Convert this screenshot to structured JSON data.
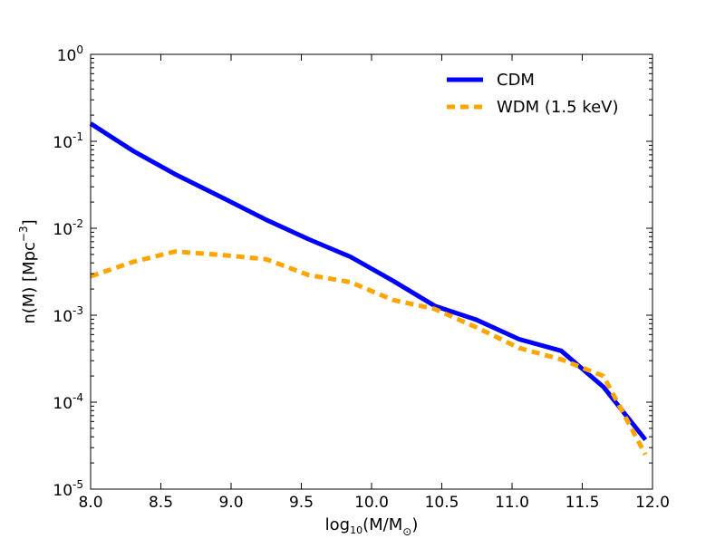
{
  "chart_data": {
    "type": "line",
    "title": "",
    "xlabel": {
      "base": "log",
      "sub": "10",
      "main": "(M/M",
      "sub2": "⊙",
      "close": ")"
    },
    "ylabel": {
      "main": "n(M) [Mpc",
      "sup": "−3",
      "close": "]"
    },
    "xlim": [
      8.0,
      12.0
    ],
    "ylim": [
      1e-05,
      1
    ],
    "yscale": "log",
    "x_ticks": [
      "8.0",
      "8.5",
      "9.0",
      "9.5",
      "10.0",
      "10.5",
      "11.0",
      "11.5",
      "12.0"
    ],
    "y_ticks": [
      {
        "base": "10",
        "exp": "0"
      },
      {
        "base": "10",
        "exp": "-1"
      },
      {
        "base": "10",
        "exp": "-2"
      },
      {
        "base": "10",
        "exp": "-3"
      },
      {
        "base": "10",
        "exp": "-4"
      },
      {
        "base": "10",
        "exp": "-5"
      }
    ],
    "legend_position": "top-right",
    "series": [
      {
        "name": "CDM",
        "color": "#0000ff",
        "style": "solid",
        "x": [
          8.0,
          8.3,
          8.6,
          8.95,
          9.25,
          9.55,
          9.85,
          10.15,
          10.45,
          10.75,
          11.05,
          11.35,
          11.65,
          11.95
        ],
        "y": [
          0.16,
          0.078,
          0.042,
          0.022,
          0.0125,
          0.0075,
          0.0047,
          0.0025,
          0.00128,
          0.00088,
          0.00053,
          0.00039,
          0.00015,
          3.7e-05
        ]
      },
      {
        "name": "WDM (1.5 keV)",
        "color": "#ffa500",
        "style": "dashed",
        "x": [
          8.0,
          8.3,
          8.6,
          8.95,
          9.25,
          9.55,
          9.85,
          10.15,
          10.45,
          10.75,
          11.05,
          11.35,
          11.65,
          11.95
        ],
        "y": [
          0.0028,
          0.0041,
          0.0054,
          0.0049,
          0.0044,
          0.0029,
          0.0024,
          0.0015,
          0.00118,
          0.00072,
          0.00042,
          0.00031,
          0.0002,
          2.5e-05
        ]
      }
    ]
  }
}
